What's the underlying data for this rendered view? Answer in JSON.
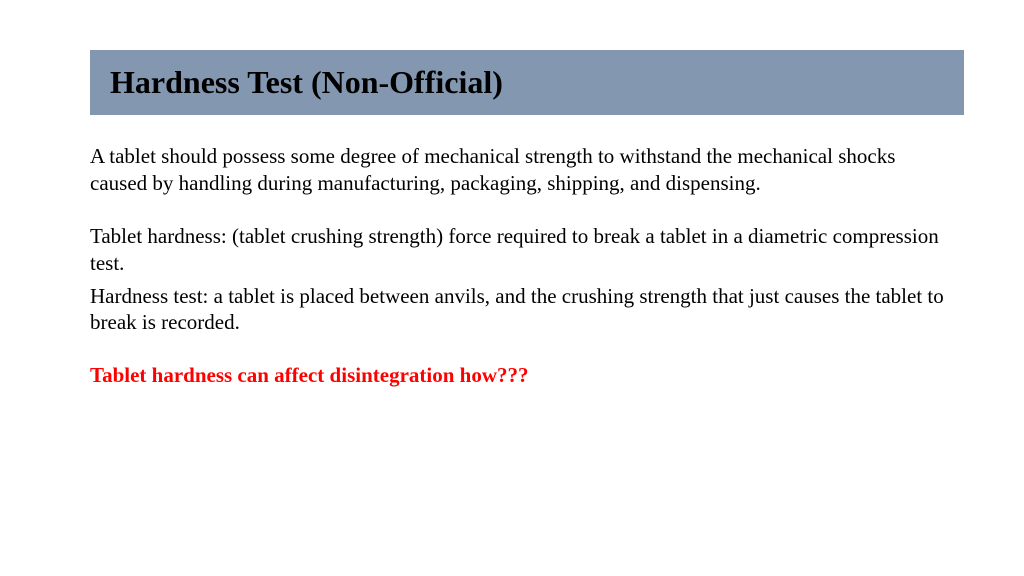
{
  "slide": {
    "title": "Hardness Test (Non-Official)",
    "title_bar_color": "#8497b0",
    "title_text_color": "#000000",
    "title_fontsize": 32,
    "body_fontsize": 21,
    "body_color": "#000000",
    "highlight_color": "#ff0000",
    "background_color": "#ffffff",
    "font_family": "Times New Roman",
    "paragraphs": [
      "A tablet should possess some degree of mechanical strength to withstand the mechanical shocks caused by handling during manufacturing, packaging, shipping, and dispensing.",
      "Tablet hardness: (tablet crushing strength) force required to break a tablet in a diametric compression test.",
      "Hardness test: a tablet is placed between anvils, and the crushing strength that just causes the tablet to break is recorded."
    ],
    "highlight_line": "Tablet hardness can affect disintegration how???"
  }
}
